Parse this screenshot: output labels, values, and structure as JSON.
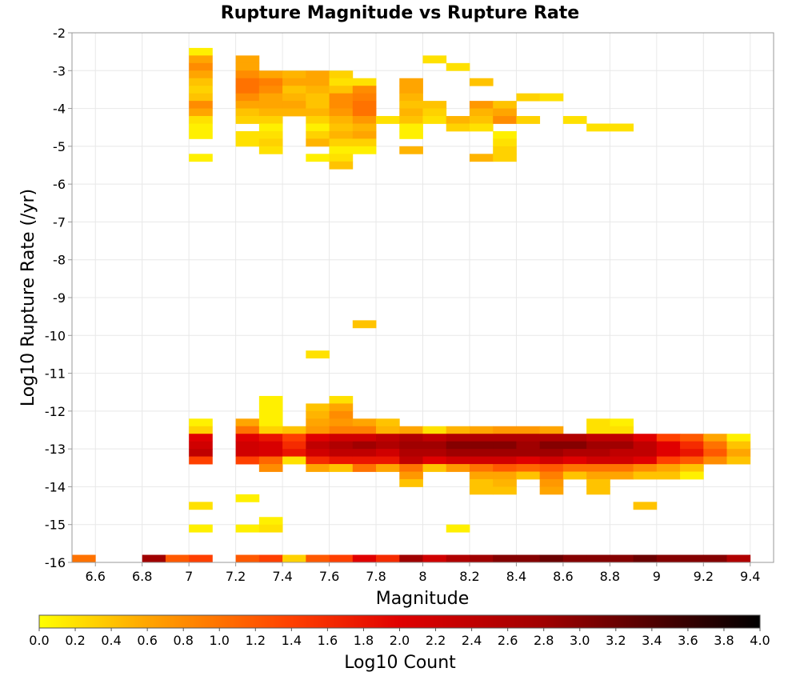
{
  "chart_data": {
    "type": "heatmap",
    "title": "Rupture Magnitude vs Rupture Rate",
    "xlabel": "Magnitude",
    "ylabel": "Log10 Rupture Rate (/yr)",
    "xlim": [
      6.5,
      9.5
    ],
    "ylim": [
      -16,
      -2
    ],
    "x_ticks": [
      "6.6",
      "6.8",
      "7",
      "7.2",
      "7.4",
      "7.6",
      "7.8",
      "8",
      "8.2",
      "8.4",
      "8.6",
      "8.8",
      "9",
      "9.2",
      "9.4"
    ],
    "y_ticks": [
      "-2",
      "-3",
      "-4",
      "-5",
      "-6",
      "-7",
      "-8",
      "-9",
      "-10",
      "-11",
      "-12",
      "-13",
      "-14",
      "-15",
      "-16"
    ],
    "bin_width_x": 0.1,
    "bin_height_y": 0.2,
    "grid": true,
    "colorbar": {
      "label": "Log10 Count",
      "min": 0.0,
      "max": 4.0,
      "ticks": [
        "0.0",
        "0.2",
        "0.4",
        "0.6",
        "0.8",
        "1.0",
        "1.2",
        "1.4",
        "1.6",
        "1.8",
        "2.0",
        "2.2",
        "2.4",
        "2.6",
        "2.8",
        "3.0",
        "3.2",
        "3.4",
        "3.6",
        "3.8",
        "4.0"
      ],
      "colors": [
        "#ffff00",
        "#ffa500",
        "#ff4000",
        "#e00000",
        "#a00000",
        "#000000"
      ]
    },
    "cells": [
      [
        7.05,
        -2.5,
        0.1
      ],
      [
        7.05,
        -2.7,
        0.6
      ],
      [
        7.05,
        -2.9,
        0.8
      ],
      [
        7.05,
        -3.1,
        0.6
      ],
      [
        7.05,
        -3.3,
        0.4
      ],
      [
        7.05,
        -3.5,
        0.3
      ],
      [
        7.05,
        -3.7,
        0.4
      ],
      [
        7.05,
        -3.9,
        0.8
      ],
      [
        7.05,
        -4.1,
        0.6
      ],
      [
        7.05,
        -4.3,
        0.2
      ],
      [
        7.05,
        -4.5,
        0.1
      ],
      [
        7.05,
        -4.7,
        0.1
      ],
      [
        7.05,
        -5.3,
        0.1
      ],
      [
        7.25,
        -2.7,
        0.6
      ],
      [
        7.25,
        -2.9,
        0.6
      ],
      [
        7.25,
        -3.1,
        0.8
      ],
      [
        7.25,
        -3.3,
        1.0
      ],
      [
        7.25,
        -3.5,
        1.0
      ],
      [
        7.25,
        -3.7,
        0.8
      ],
      [
        7.25,
        -3.9,
        0.6
      ],
      [
        7.25,
        -4.1,
        0.4
      ],
      [
        7.25,
        -4.3,
        0.3
      ],
      [
        7.25,
        -4.7,
        0.2
      ],
      [
        7.25,
        -4.9,
        0.2
      ],
      [
        7.35,
        -3.1,
        0.6
      ],
      [
        7.35,
        -3.3,
        0.9
      ],
      [
        7.35,
        -3.5,
        0.8
      ],
      [
        7.35,
        -3.7,
        0.6
      ],
      [
        7.35,
        -3.9,
        0.6
      ],
      [
        7.35,
        -4.1,
        0.5
      ],
      [
        7.35,
        -4.3,
        0.3
      ],
      [
        7.35,
        -4.5,
        0.1
      ],
      [
        7.35,
        -4.7,
        0.2
      ],
      [
        7.35,
        -4.9,
        0.3
      ],
      [
        7.35,
        -5.1,
        0.2
      ],
      [
        7.45,
        -3.1,
        0.5
      ],
      [
        7.45,
        -3.3,
        0.6
      ],
      [
        7.45,
        -3.5,
        0.4
      ],
      [
        7.45,
        -3.7,
        0.5
      ],
      [
        7.45,
        -3.9,
        0.6
      ],
      [
        7.45,
        -4.1,
        0.5
      ],
      [
        7.55,
        -3.1,
        0.6
      ],
      [
        7.55,
        -3.3,
        0.6
      ],
      [
        7.55,
        -3.5,
        0.5
      ],
      [
        7.55,
        -3.7,
        0.4
      ],
      [
        7.55,
        -3.9,
        0.4
      ],
      [
        7.55,
        -4.1,
        0.5
      ],
      [
        7.55,
        -4.3,
        0.3
      ],
      [
        7.55,
        -4.5,
        0.1
      ],
      [
        7.55,
        -4.7,
        0.3
      ],
      [
        7.55,
        -4.9,
        0.5
      ],
      [
        7.55,
        -5.3,
        0.1
      ],
      [
        7.65,
        -3.1,
        0.3
      ],
      [
        7.65,
        -3.3,
        0.2
      ],
      [
        7.65,
        -3.5,
        0.4
      ],
      [
        7.65,
        -3.7,
        0.8
      ],
      [
        7.65,
        -3.9,
        0.8
      ],
      [
        7.65,
        -4.1,
        0.7
      ],
      [
        7.65,
        -4.3,
        0.5
      ],
      [
        7.65,
        -4.5,
        0.4
      ],
      [
        7.65,
        -4.7,
        0.5
      ],
      [
        7.65,
        -4.9,
        0.3
      ],
      [
        7.65,
        -5.1,
        0.1
      ],
      [
        7.65,
        -5.3,
        0.2
      ],
      [
        7.65,
        -5.5,
        0.4
      ],
      [
        7.75,
        -3.3,
        0.2
      ],
      [
        7.75,
        -3.5,
        0.8
      ],
      [
        7.75,
        -3.7,
        0.9
      ],
      [
        7.75,
        -3.9,
        1.0
      ],
      [
        7.75,
        -4.1,
        1.0
      ],
      [
        7.75,
        -4.3,
        0.7
      ],
      [
        7.75,
        -4.5,
        0.5
      ],
      [
        7.75,
        -4.7,
        0.6
      ],
      [
        7.75,
        -4.9,
        0.3
      ],
      [
        7.75,
        -5.1,
        0.1
      ],
      [
        7.85,
        -4.3,
        0.2
      ],
      [
        7.95,
        -3.3,
        0.6
      ],
      [
        7.95,
        -3.5,
        0.6
      ],
      [
        7.95,
        -3.7,
        0.5
      ],
      [
        7.95,
        -3.9,
        0.4
      ],
      [
        7.95,
        -4.1,
        0.5
      ],
      [
        7.95,
        -4.3,
        0.4
      ],
      [
        7.95,
        -4.5,
        0.1
      ],
      [
        7.95,
        -4.7,
        0.1
      ],
      [
        7.95,
        -5.1,
        0.5
      ],
      [
        8.05,
        -2.7,
        0.2
      ],
      [
        8.05,
        -3.9,
        0.4
      ],
      [
        8.05,
        -4.1,
        0.3
      ],
      [
        8.05,
        -4.3,
        0.2
      ],
      [
        8.15,
        -2.9,
        0.2
      ],
      [
        8.15,
        -4.3,
        0.5
      ],
      [
        8.15,
        -4.5,
        0.3
      ],
      [
        8.25,
        -3.3,
        0.4
      ],
      [
        8.25,
        -3.9,
        0.7
      ],
      [
        8.25,
        -4.1,
        0.5
      ],
      [
        8.25,
        -4.3,
        0.4
      ],
      [
        8.25,
        -4.5,
        0.2
      ],
      [
        8.25,
        -5.3,
        0.5
      ],
      [
        8.35,
        -3.9,
        0.4
      ],
      [
        8.35,
        -4.1,
        0.6
      ],
      [
        8.35,
        -4.3,
        0.8
      ],
      [
        8.35,
        -4.7,
        0.1
      ],
      [
        8.35,
        -4.9,
        0.2
      ],
      [
        8.35,
        -5.1,
        0.3
      ],
      [
        8.35,
        -5.3,
        0.3
      ],
      [
        8.45,
        -3.7,
        0.3
      ],
      [
        8.45,
        -4.3,
        0.3
      ],
      [
        8.55,
        -3.7,
        0.2
      ],
      [
        8.65,
        -4.3,
        0.2
      ],
      [
        8.75,
        -4.5,
        0.2
      ],
      [
        8.85,
        -4.5,
        0.2
      ],
      [
        7.75,
        -9.7,
        0.4
      ],
      [
        7.55,
        -10.5,
        0.2
      ],
      [
        7.05,
        -12.3,
        0.1
      ],
      [
        7.05,
        -12.5,
        0.3
      ],
      [
        7.05,
        -12.7,
        2.0
      ],
      [
        7.05,
        -12.9,
        2.2
      ],
      [
        7.05,
        -13.1,
        2.4
      ],
      [
        7.05,
        -13.3,
        1.4
      ],
      [
        7.05,
        -14.5,
        0.2
      ],
      [
        7.05,
        -15.1,
        0.1
      ],
      [
        7.25,
        -12.3,
        0.6
      ],
      [
        7.25,
        -12.5,
        1.0
      ],
      [
        7.25,
        -12.7,
        2.0
      ],
      [
        7.25,
        -12.9,
        2.2
      ],
      [
        7.25,
        -13.1,
        2.2
      ],
      [
        7.25,
        -13.3,
        1.4
      ],
      [
        7.25,
        -14.3,
        0.1
      ],
      [
        7.25,
        -15.1,
        0.1
      ],
      [
        7.35,
        -11.7,
        0.1
      ],
      [
        7.35,
        -11.9,
        0.1
      ],
      [
        7.35,
        -12.1,
        0.1
      ],
      [
        7.35,
        -12.3,
        0.1
      ],
      [
        7.35,
        -12.5,
        0.3
      ],
      [
        7.35,
        -12.7,
        1.8
      ],
      [
        7.35,
        -12.9,
        2.1
      ],
      [
        7.35,
        -13.1,
        2.1
      ],
      [
        7.35,
        -13.3,
        1.1
      ],
      [
        7.35,
        -13.5,
        0.8
      ],
      [
        7.35,
        -14.9,
        0.1
      ],
      [
        7.35,
        -15.1,
        0.2
      ],
      [
        7.45,
        -12.5,
        0.4
      ],
      [
        7.45,
        -12.7,
        1.4
      ],
      [
        7.45,
        -12.9,
        1.6
      ],
      [
        7.45,
        -13.1,
        1.8
      ],
      [
        7.45,
        -13.3,
        0.2
      ],
      [
        7.55,
        -11.9,
        0.4
      ],
      [
        7.55,
        -12.1,
        0.5
      ],
      [
        7.55,
        -12.3,
        0.6
      ],
      [
        7.55,
        -12.5,
        0.7
      ],
      [
        7.55,
        -12.7,
        2.0
      ],
      [
        7.55,
        -12.9,
        2.4
      ],
      [
        7.55,
        -13.1,
        2.2
      ],
      [
        7.55,
        -13.3,
        1.6
      ],
      [
        7.55,
        -13.5,
        0.6
      ],
      [
        7.65,
        -11.7,
        0.2
      ],
      [
        7.65,
        -11.9,
        0.6
      ],
      [
        7.65,
        -12.1,
        0.8
      ],
      [
        7.65,
        -12.3,
        0.7
      ],
      [
        7.65,
        -12.5,
        0.9
      ],
      [
        7.65,
        -12.7,
        2.2
      ],
      [
        7.65,
        -12.9,
        2.6
      ],
      [
        7.65,
        -13.1,
        2.4
      ],
      [
        7.65,
        -13.3,
        1.8
      ],
      [
        7.65,
        -13.5,
        0.4
      ],
      [
        7.75,
        -12.3,
        0.6
      ],
      [
        7.75,
        -12.5,
        0.9
      ],
      [
        7.75,
        -12.7,
        2.2
      ],
      [
        7.75,
        -12.9,
        2.8
      ],
      [
        7.75,
        -13.1,
        2.4
      ],
      [
        7.75,
        -13.3,
        1.8
      ],
      [
        7.75,
        -13.5,
        1.0
      ],
      [
        7.85,
        -12.3,
        0.4
      ],
      [
        7.85,
        -12.5,
        0.5
      ],
      [
        7.85,
        -12.7,
        2.4
      ],
      [
        7.85,
        -12.9,
        2.6
      ],
      [
        7.85,
        -13.1,
        2.2
      ],
      [
        7.85,
        -13.3,
        1.8
      ],
      [
        7.85,
        -13.5,
        0.6
      ],
      [
        7.95,
        -12.5,
        0.6
      ],
      [
        7.95,
        -12.7,
        2.6
      ],
      [
        7.95,
        -12.9,
        2.8
      ],
      [
        7.95,
        -13.1,
        2.6
      ],
      [
        7.95,
        -13.3,
        2.4
      ],
      [
        7.95,
        -13.5,
        1.0
      ],
      [
        7.95,
        -13.7,
        0.7
      ],
      [
        7.95,
        -13.9,
        0.4
      ],
      [
        8.05,
        -12.5,
        0.2
      ],
      [
        8.05,
        -12.7,
        2.4
      ],
      [
        8.05,
        -12.9,
        2.8
      ],
      [
        8.05,
        -13.1,
        2.6
      ],
      [
        8.05,
        -13.3,
        2.0
      ],
      [
        8.05,
        -13.5,
        0.4
      ],
      [
        8.15,
        -12.5,
        0.5
      ],
      [
        8.15,
        -12.7,
        2.6
      ],
      [
        8.15,
        -12.9,
        3.0
      ],
      [
        8.15,
        -13.1,
        2.8
      ],
      [
        8.15,
        -13.3,
        2.2
      ],
      [
        8.15,
        -13.5,
        0.7
      ],
      [
        8.15,
        -15.1,
        0.1
      ],
      [
        8.25,
        -12.5,
        0.6
      ],
      [
        8.25,
        -12.7,
        2.6
      ],
      [
        8.25,
        -12.9,
        3.0
      ],
      [
        8.25,
        -13.1,
        2.8
      ],
      [
        8.25,
        -13.3,
        2.2
      ],
      [
        8.25,
        -13.5,
        1.0
      ],
      [
        8.25,
        -13.7,
        0.6
      ],
      [
        8.25,
        -13.9,
        0.4
      ],
      [
        8.25,
        -14.1,
        0.4
      ],
      [
        8.35,
        -12.5,
        0.7
      ],
      [
        8.35,
        -12.7,
        2.6
      ],
      [
        8.35,
        -12.9,
        3.0
      ],
      [
        8.35,
        -13.1,
        2.8
      ],
      [
        8.35,
        -13.3,
        2.2
      ],
      [
        8.35,
        -13.5,
        1.2
      ],
      [
        8.35,
        -13.7,
        0.6
      ],
      [
        8.35,
        -13.9,
        0.5
      ],
      [
        8.35,
        -14.1,
        0.4
      ],
      [
        8.45,
        -12.5,
        0.7
      ],
      [
        8.45,
        -12.7,
        2.6
      ],
      [
        8.45,
        -12.9,
        2.8
      ],
      [
        8.45,
        -13.1,
        2.8
      ],
      [
        8.45,
        -13.3,
        2.0
      ],
      [
        8.45,
        -13.5,
        1.1
      ],
      [
        8.45,
        -13.7,
        0.4
      ],
      [
        8.55,
        -12.5,
        0.6
      ],
      [
        8.55,
        -12.7,
        2.6
      ],
      [
        8.55,
        -12.9,
        3.0
      ],
      [
        8.55,
        -13.1,
        2.8
      ],
      [
        8.55,
        -13.3,
        2.2
      ],
      [
        8.55,
        -13.5,
        1.2
      ],
      [
        8.55,
        -13.7,
        0.9
      ],
      [
        8.55,
        -13.9,
        0.7
      ],
      [
        8.55,
        -14.1,
        0.6
      ],
      [
        8.65,
        -12.7,
        2.6
      ],
      [
        8.65,
        -12.9,
        3.0
      ],
      [
        8.65,
        -13.1,
        2.6
      ],
      [
        8.65,
        -13.3,
        2.0
      ],
      [
        8.65,
        -13.5,
        1.0
      ],
      [
        8.65,
        -13.7,
        0.4
      ],
      [
        8.75,
        -12.3,
        0.2
      ],
      [
        8.75,
        -12.5,
        0.2
      ],
      [
        8.75,
        -12.7,
        2.4
      ],
      [
        8.75,
        -12.9,
        2.8
      ],
      [
        8.75,
        -13.1,
        2.6
      ],
      [
        8.75,
        -13.3,
        2.2
      ],
      [
        8.75,
        -13.5,
        1.0
      ],
      [
        8.75,
        -13.7,
        0.6
      ],
      [
        8.75,
        -13.9,
        0.4
      ],
      [
        8.75,
        -14.1,
        0.4
      ],
      [
        8.85,
        -12.3,
        0.1
      ],
      [
        8.85,
        -12.5,
        0.2
      ],
      [
        8.85,
        -12.7,
        2.4
      ],
      [
        8.85,
        -12.9,
        2.8
      ],
      [
        8.85,
        -13.1,
        2.4
      ],
      [
        8.85,
        -13.3,
        2.2
      ],
      [
        8.85,
        -13.5,
        1.0
      ],
      [
        8.85,
        -13.7,
        0.6
      ],
      [
        8.95,
        -12.7,
        2.0
      ],
      [
        8.95,
        -12.9,
        2.4
      ],
      [
        8.95,
        -13.1,
        2.4
      ],
      [
        8.95,
        -13.3,
        2.0
      ],
      [
        8.95,
        -13.5,
        0.8
      ],
      [
        8.95,
        -13.7,
        0.4
      ],
      [
        8.95,
        -14.5,
        0.4
      ],
      [
        9.05,
        -12.7,
        1.4
      ],
      [
        9.05,
        -12.9,
        2.0
      ],
      [
        9.05,
        -13.1,
        2.0
      ],
      [
        9.05,
        -13.3,
        1.4
      ],
      [
        9.05,
        -13.5,
        0.6
      ],
      [
        9.05,
        -13.7,
        0.4
      ],
      [
        9.15,
        -12.7,
        1.2
      ],
      [
        9.15,
        -12.9,
        1.6
      ],
      [
        9.15,
        -13.1,
        1.8
      ],
      [
        9.15,
        -13.3,
        1.2
      ],
      [
        9.15,
        -13.5,
        0.4
      ],
      [
        9.15,
        -13.7,
        0.1
      ],
      [
        9.25,
        -12.7,
        0.6
      ],
      [
        9.25,
        -12.9,
        1.0
      ],
      [
        9.25,
        -13.1,
        1.2
      ],
      [
        9.25,
        -13.3,
        0.8
      ],
      [
        9.35,
        -12.7,
        0.1
      ],
      [
        9.35,
        -12.9,
        0.4
      ],
      [
        9.35,
        -13.1,
        0.6
      ],
      [
        9.35,
        -13.3,
        0.4
      ],
      [
        6.55,
        -15.9,
        1.0
      ],
      [
        6.85,
        -15.9,
        2.8
      ],
      [
        6.95,
        -15.9,
        1.2
      ],
      [
        7.05,
        -15.9,
        1.4
      ],
      [
        7.25,
        -15.9,
        1.2
      ],
      [
        7.35,
        -15.9,
        1.4
      ],
      [
        7.45,
        -15.9,
        0.3
      ],
      [
        7.55,
        -15.9,
        1.2
      ],
      [
        7.65,
        -15.9,
        1.4
      ],
      [
        7.75,
        -15.9,
        2.0
      ],
      [
        7.85,
        -15.9,
        1.6
      ],
      [
        7.95,
        -15.9,
        2.8
      ],
      [
        8.05,
        -15.9,
        2.2
      ],
      [
        8.15,
        -15.9,
        2.6
      ],
      [
        8.25,
        -15.9,
        2.8
      ],
      [
        8.35,
        -15.9,
        3.0
      ],
      [
        8.45,
        -15.9,
        3.0
      ],
      [
        8.55,
        -15.9,
        3.2
      ],
      [
        8.65,
        -15.9,
        3.0
      ],
      [
        8.75,
        -15.9,
        3.0
      ],
      [
        8.85,
        -15.9,
        3.0
      ],
      [
        8.95,
        -15.9,
        3.2
      ],
      [
        9.05,
        -15.9,
        3.0
      ],
      [
        9.15,
        -15.9,
        3.0
      ],
      [
        9.25,
        -15.9,
        3.0
      ],
      [
        9.35,
        -15.9,
        2.6
      ]
    ]
  }
}
